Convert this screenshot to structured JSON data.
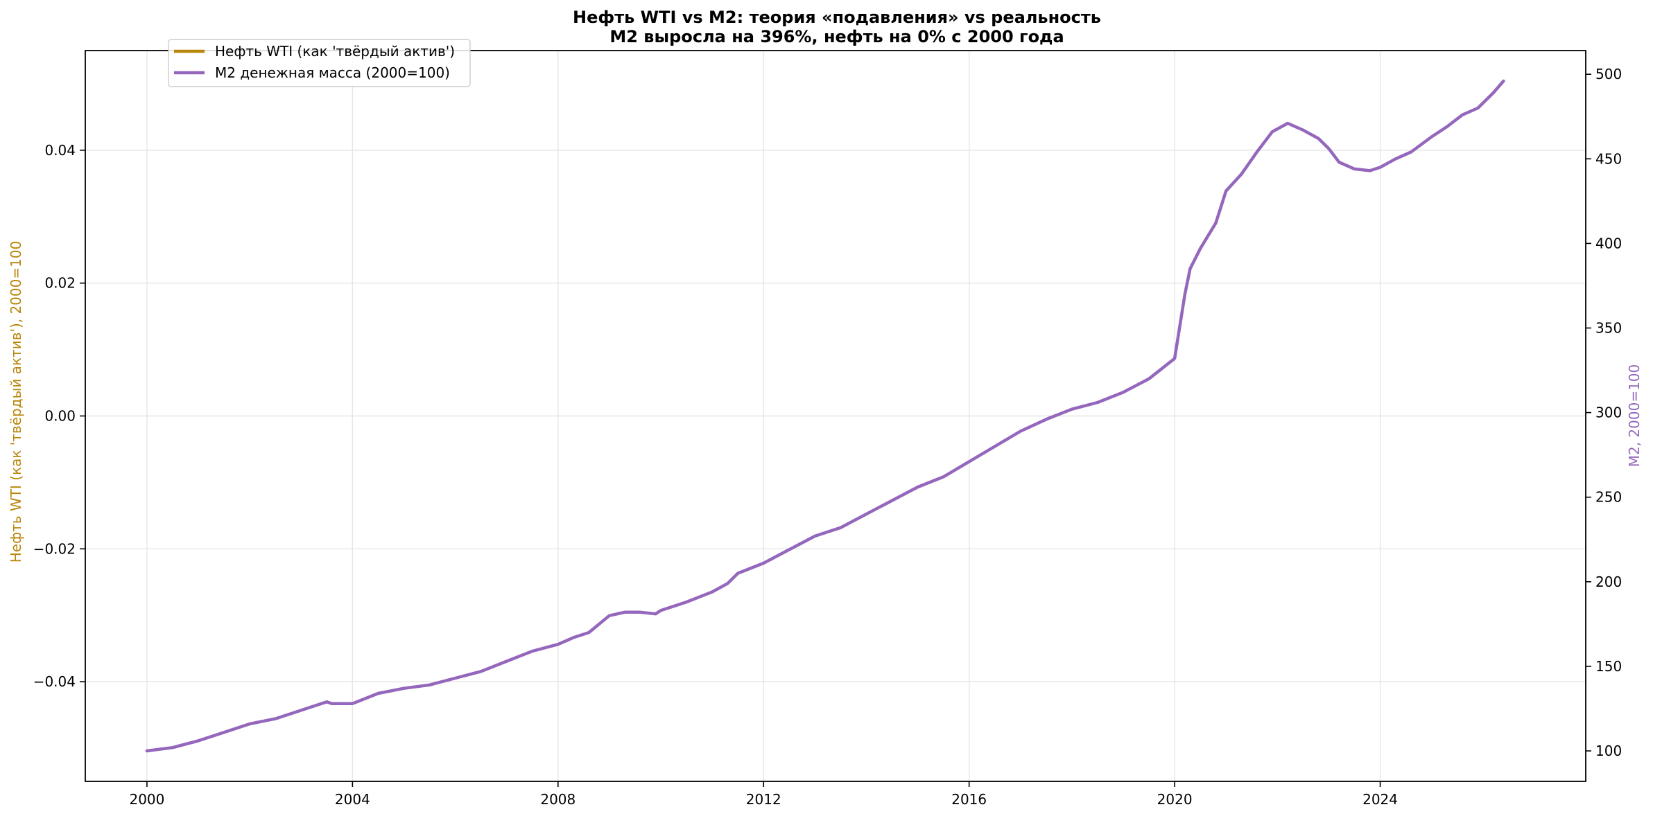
{
  "chart_data": {
    "type": "line",
    "title": "Нефть WTI vs M2: теория «подавления» vs реальность",
    "subtitle": "M2 выросла на 396%, нефть на 0% с 2000 года",
    "ylabel_left": "Нефть WTI (как 'твёрдый актив'), 2000=100",
    "ylabel_right": "M2, 2000=100",
    "xlabel": "",
    "grid": true,
    "legend_position": "top-left",
    "colors": {
      "oil": "#b8860b",
      "m2": "#9467bd"
    },
    "xlim": [
      1998.8,
      2028.0
    ],
    "ylim_left": [
      -0.055,
      0.055
    ],
    "ylim_right": [
      82,
      514
    ],
    "x_ticks": [
      2000,
      2004,
      2008,
      2012,
      2016,
      2020,
      2024
    ],
    "x_tick_labels": [
      "2000",
      "2004",
      "2008",
      "2012",
      "2016",
      "2020",
      "2024"
    ],
    "y_left_ticks": [
      -0.04,
      -0.02,
      0.0,
      0.02,
      0.04
    ],
    "y_left_tick_labels": [
      "−0.04",
      "−0.02",
      "0.00",
      "0.02",
      "0.04"
    ],
    "y_right_ticks": [
      100,
      150,
      200,
      250,
      300,
      350,
      400,
      450,
      500
    ],
    "y_right_tick_labels": [
      "100",
      "150",
      "200",
      "250",
      "300",
      "350",
      "400",
      "450",
      "500"
    ],
    "series": [
      {
        "name": "Нефть WTI (как 'твёрдый актив')",
        "axis": "left",
        "x": [],
        "values": []
      },
      {
        "name": "M2 денежная масса (2000=100)",
        "axis": "right",
        "x": [
          2000.0,
          2000.5,
          2001.0,
          2001.5,
          2002.0,
          2002.5,
          2003.0,
          2003.5,
          2003.6,
          2004.0,
          2004.5,
          2005.0,
          2005.5,
          2006.0,
          2006.5,
          2007.0,
          2007.5,
          2008.0,
          2008.3,
          2008.6,
          2009.0,
          2009.3,
          2009.6,
          2009.9,
          2010.0,
          2010.5,
          2011.0,
          2011.3,
          2011.5,
          2012.0,
          2012.5,
          2013.0,
          2013.5,
          2014.0,
          2014.5,
          2015.0,
          2015.5,
          2016.0,
          2016.5,
          2017.0,
          2017.5,
          2018.0,
          2018.5,
          2019.0,
          2019.5,
          2020.0,
          2020.2,
          2020.3,
          2020.5,
          2020.8,
          2021.0,
          2021.3,
          2021.6,
          2021.9,
          2022.2,
          2022.5,
          2022.8,
          2023.0,
          2023.2,
          2023.5,
          2023.8,
          2024.0,
          2024.3,
          2024.6,
          2025.0,
          2025.3,
          2025.6,
          2025.9,
          2026.2,
          2026.4
        ],
        "values": [
          100,
          102,
          106,
          111,
          116,
          119,
          124,
          129,
          128,
          128,
          134,
          137,
          139,
          143,
          147,
          153,
          159,
          163,
          167,
          170,
          180,
          182,
          182,
          181,
          183,
          188,
          194,
          199,
          205,
          211,
          219,
          227,
          232,
          240,
          248,
          256,
          262,
          271,
          280,
          289,
          296,
          302,
          306,
          312,
          320,
          332,
          370,
          385,
          397,
          412,
          431,
          441,
          454,
          466,
          471,
          467,
          462,
          456,
          448,
          444,
          443,
          445,
          450,
          454,
          463,
          469,
          476,
          480,
          489,
          496
        ]
      }
    ]
  }
}
